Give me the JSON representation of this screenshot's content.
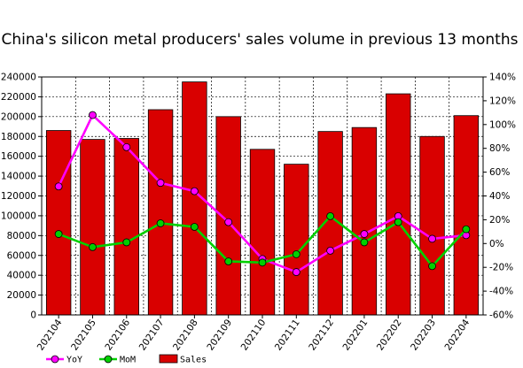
{
  "chart_data": {
    "type": "bar",
    "title": "China's silicon metal producers' sales volume in previous 13 months",
    "categories": [
      "202104",
      "202105",
      "202106",
      "202107",
      "202108",
      "202109",
      "202110",
      "202111",
      "202112",
      "202201",
      "202202",
      "202203",
      "202204"
    ],
    "y_left": {
      "ylim": [
        0,
        240000
      ],
      "ticks": [
        0,
        20000,
        40000,
        60000,
        80000,
        100000,
        120000,
        140000,
        160000,
        180000,
        200000,
        220000,
        240000
      ]
    },
    "y_right": {
      "ylim": [
        -60,
        140
      ],
      "ticks": [
        -60,
        -40,
        -20,
        0,
        20,
        40,
        60,
        80,
        100,
        120,
        140
      ],
      "unit": "%"
    },
    "grid": true,
    "legend_position": "bottom-left",
    "series": [
      {
        "name": "Sales",
        "kind": "bar",
        "axis": "left",
        "color": "#d90000",
        "values": [
          186000,
          177000,
          178000,
          207000,
          235000,
          200000,
          167000,
          152000,
          185000,
          189000,
          223000,
          180000,
          201000
        ]
      },
      {
        "name": "YoY",
        "kind": "line",
        "axis": "right",
        "color": "#ff00ff",
        "values": [
          48,
          108,
          81,
          51,
          44,
          18,
          -13,
          -24,
          -6,
          8,
          23,
          4,
          7
        ]
      },
      {
        "name": "MoM",
        "kind": "line",
        "axis": "right",
        "color": "#00d000",
        "values": [
          8,
          -3,
          1,
          17,
          14,
          -15,
          -16,
          -9,
          23,
          1,
          18,
          -19,
          12
        ]
      }
    ]
  }
}
